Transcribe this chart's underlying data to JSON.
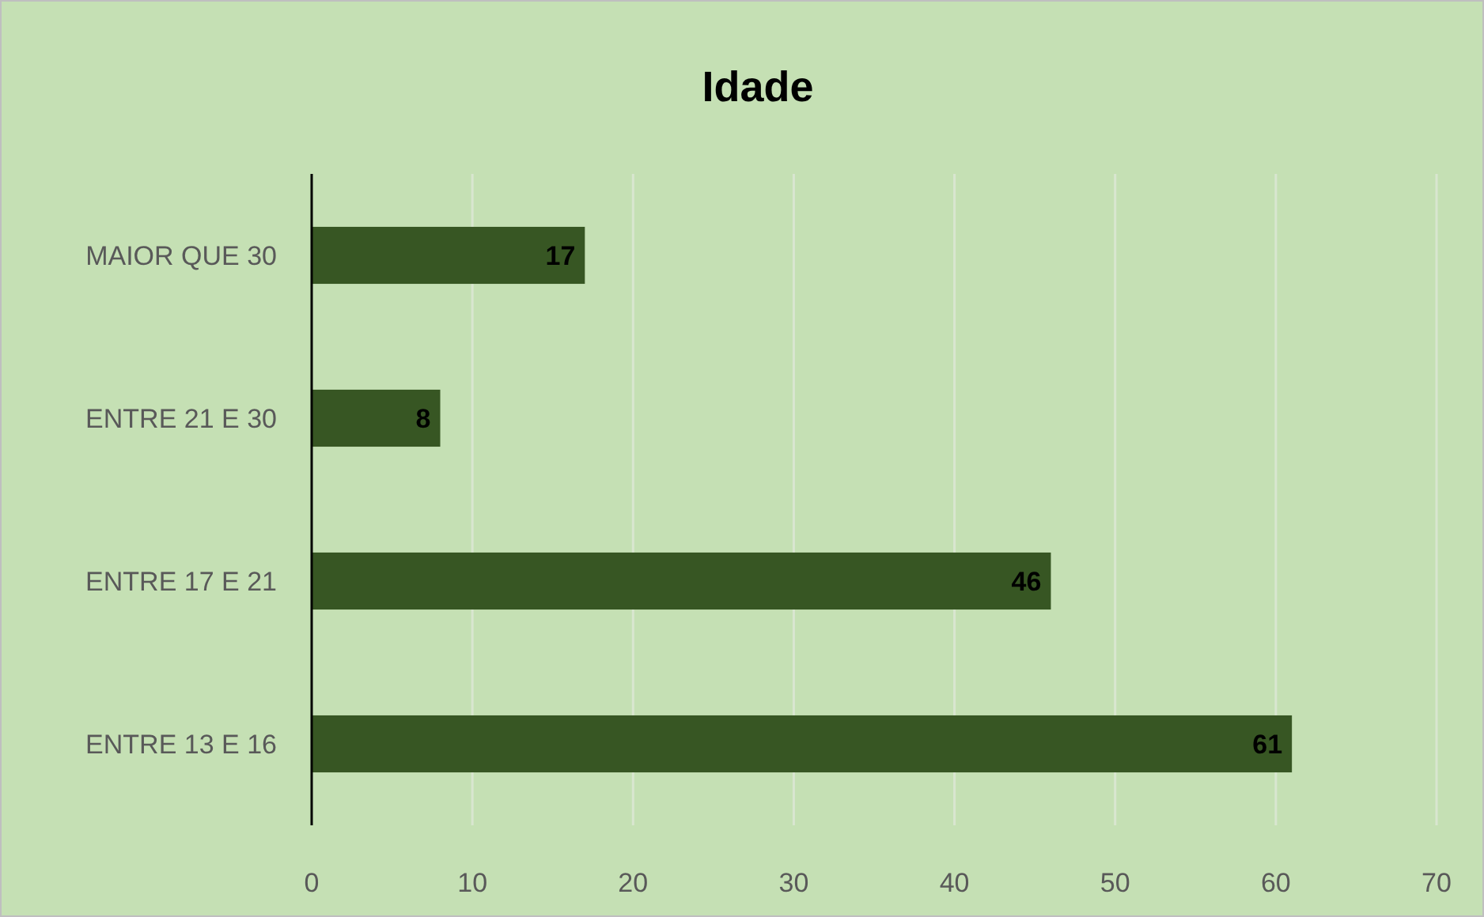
{
  "chart_data": {
    "type": "bar",
    "orientation": "horizontal",
    "title": "Idade",
    "categories": [
      "MAIOR QUE 30",
      "ENTRE 21 E 30",
      "ENTRE 17 E 21",
      "ENTRE 13 E 16"
    ],
    "values": [
      17,
      8,
      46,
      61
    ],
    "color": "#375623",
    "xlim": [
      0,
      70
    ],
    "xticks": [
      0,
      10,
      20,
      30,
      40,
      50,
      60,
      70
    ],
    "grid": "x",
    "data_labels": true
  }
}
